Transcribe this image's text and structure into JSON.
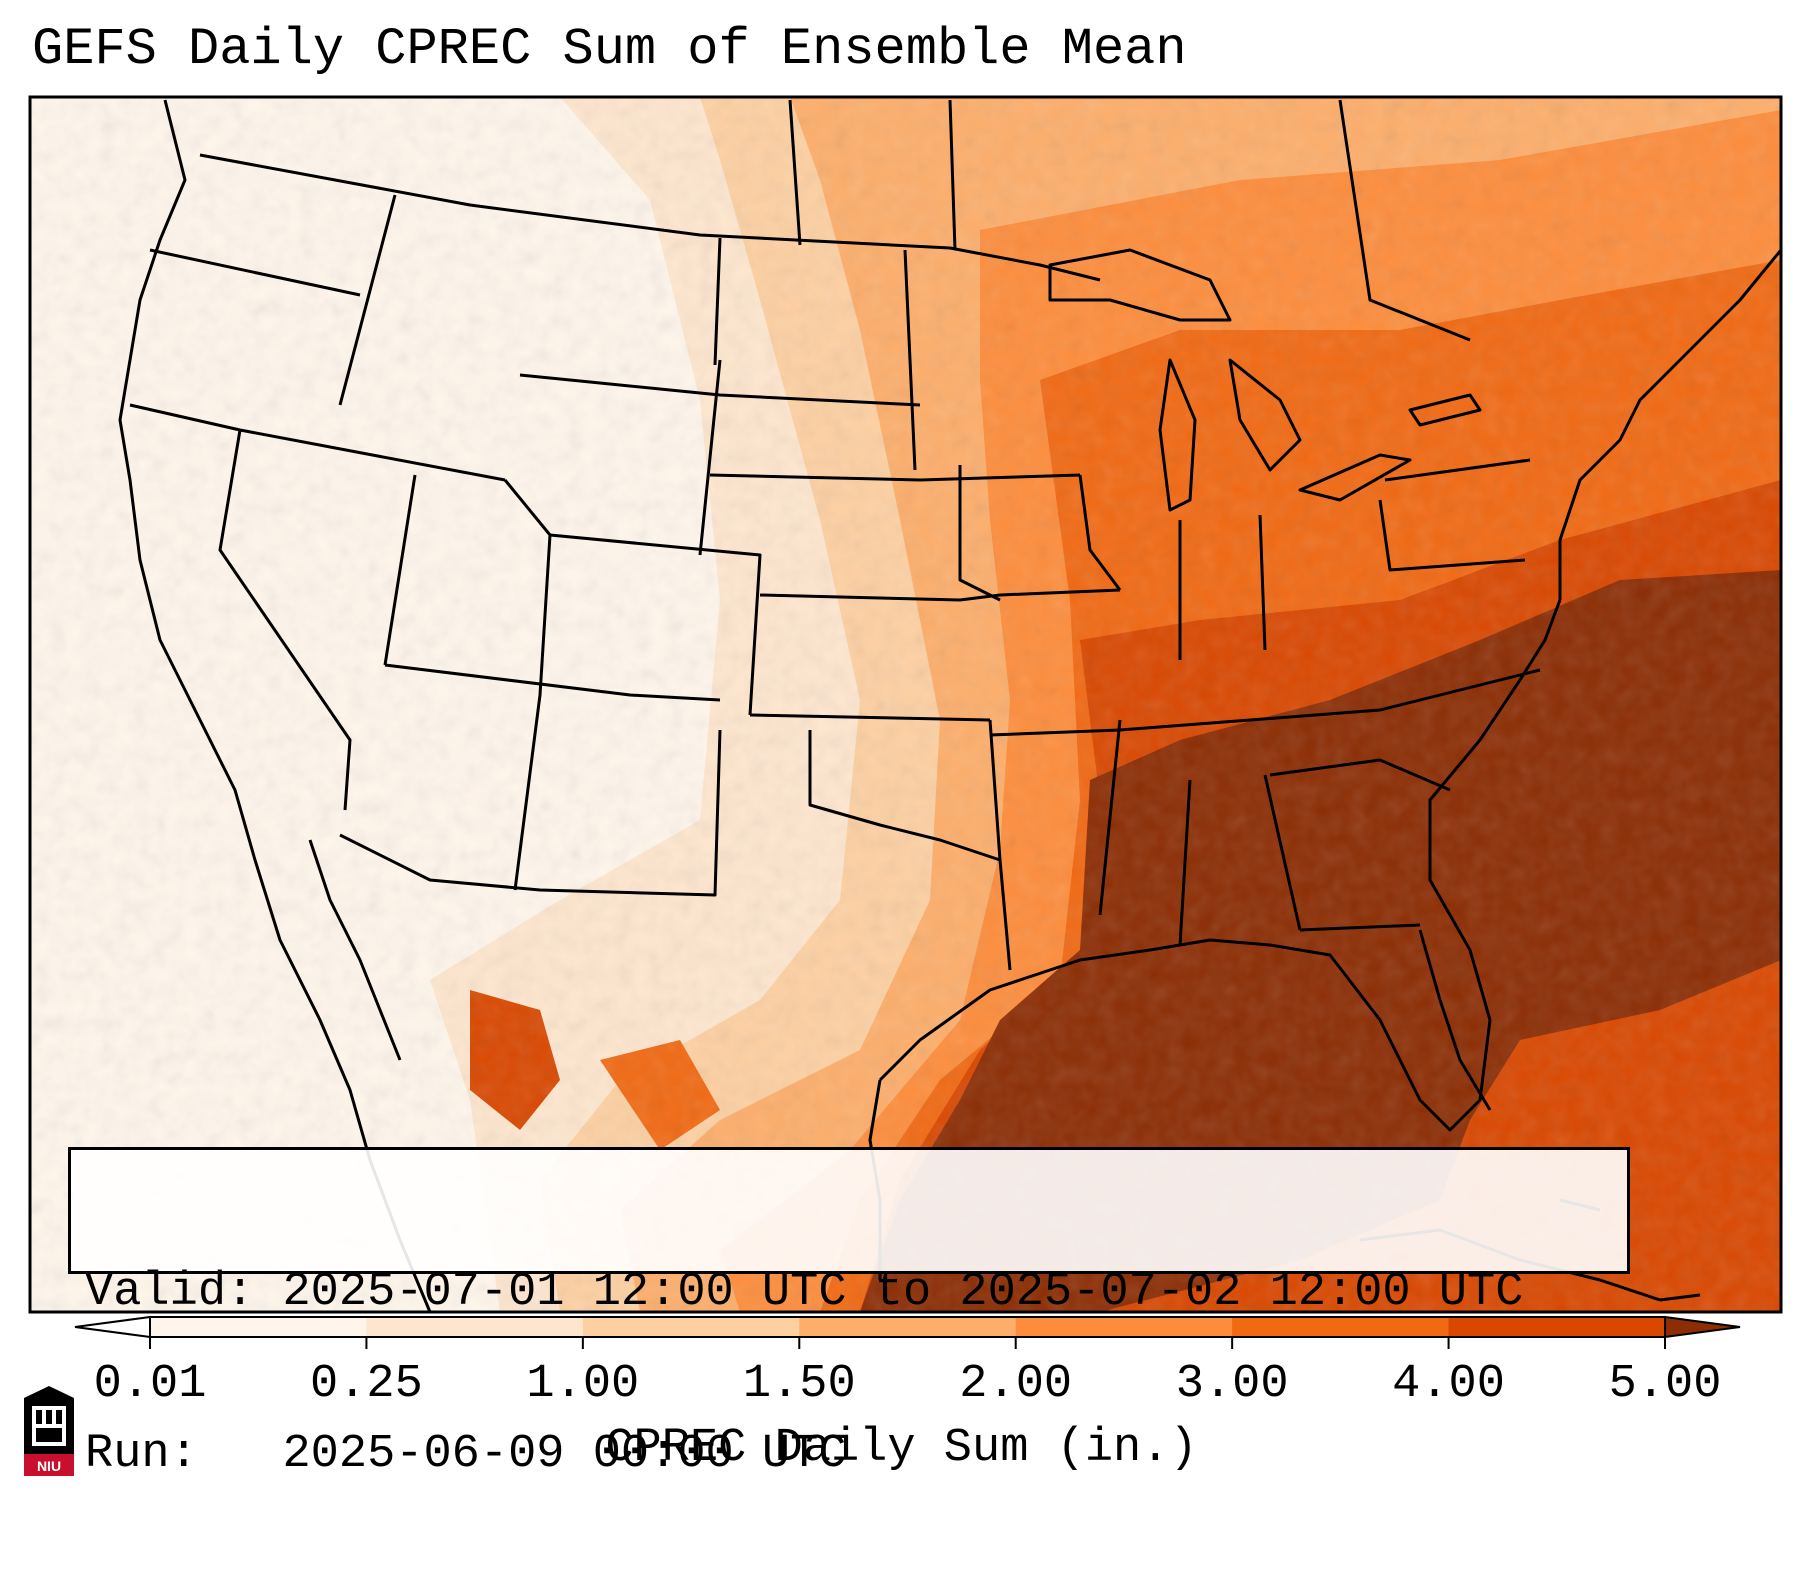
{
  "title": "GEFS Daily CPREC Sum of Ensemble Mean",
  "info": {
    "valid_label": "Valid:",
    "valid_value": "2025-07-01 12:00 UTC to 2025-07-02 12:00 UTC",
    "run_label": "Run:",
    "run_value": "2025-06-09 00:00 UTC"
  },
  "colorbar": {
    "label": "CPREC Daily Sum (in.)",
    "ticks": [
      "0.01",
      "0.25",
      "1.00",
      "1.50",
      "2.00",
      "3.00",
      "4.00",
      "5.00"
    ],
    "colors": [
      "#fff5eb",
      "#fee6ce",
      "#fdd0a2",
      "#fdae6b",
      "#fd8d3c",
      "#f16913",
      "#d94801",
      "#8c2d04"
    ],
    "under_color": "#ffffff",
    "over_color": "#8c2d04",
    "extend": "both"
  },
  "map": {
    "projection": "Lambert Conformal, contiguous United States",
    "field": "GEFS ensemble mean daily convective precipitation",
    "features": [
      "coastlines",
      "state borders",
      "country borders",
      "Great Lakes"
    ],
    "heaviest_region": "Gulf Coast, Southeast and western Atlantic",
    "lightest_region": "Pacific Northwest, Great Basin and Rockies"
  },
  "logo": {
    "name": "niu-logo-icon",
    "text": "NIU",
    "color": "#c8102e"
  }
}
